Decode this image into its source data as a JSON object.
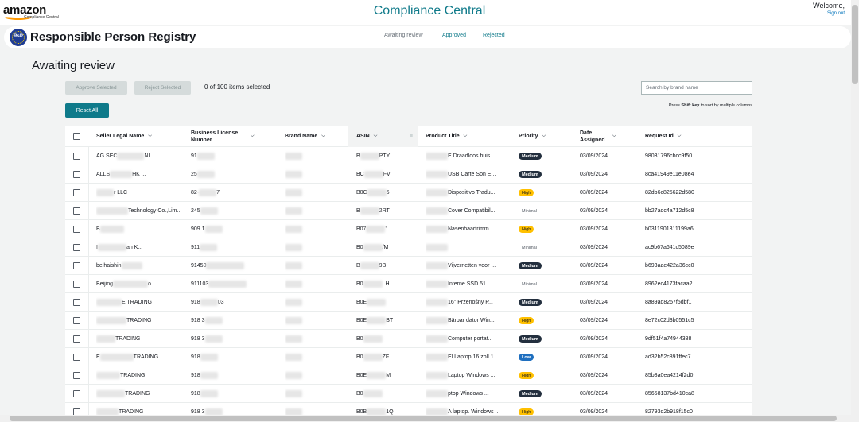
{
  "header": {
    "logo_text": "amazon",
    "logo_sub": "Compliance Central",
    "title": "Compliance Central",
    "welcome": "Welcome,",
    "signout": "Sign out"
  },
  "subheader": {
    "badge_text": "RsP",
    "title": "Responsible Person Registry",
    "nav": [
      "Awaiting review",
      "Approved",
      "Rejected"
    ]
  },
  "page": {
    "heading": "Awaiting review",
    "approve_label": "Approve Selected",
    "reject_label": "Reject Selected",
    "selected_count": "0 of 100 items selected",
    "reset_label": "Reset All",
    "search_placeholder": "Search by brand name",
    "hint_prefix": "Press",
    "hint_key": "Shift key",
    "hint_suffix": "to sort by multiple columns"
  },
  "table": {
    "columns": [
      "Seller Legal Name",
      "Business License Number",
      "Brand Name",
      "ASIN",
      "Product Title",
      "Priority",
      "Date Assigned",
      "Request Id"
    ],
    "rows": [
      {
        "seller": "AG SEC",
        "seller_tail": "NI...",
        "license": "91",
        "brand": "",
        "asin_pre": "B",
        "asin_suf": "PTY",
        "title": "E Draadloos huis...",
        "priority": "Medium",
        "date": "03/09/2024",
        "request": "98031796cbcc9f50"
      },
      {
        "seller": "ALLS",
        "seller_tail": "HK ...",
        "license": "25",
        "brand": "",
        "asin_pre": "BC",
        "asin_suf": "FV",
        "title": "USB Carte Son E...",
        "priority": "Medium",
        "date": "03/09/2024",
        "request": "8ca41949e11e08e4"
      },
      {
        "seller": "",
        "seller_tail": "r LLC",
        "license": "82-",
        "license_tail": "7",
        "brand": "",
        "asin_pre": "B0C",
        "asin_suf": "5",
        "title": "Dispositivo Tradu...",
        "priority": "High",
        "date": "03/09/2024",
        "request": "82db6c825622d580"
      },
      {
        "seller": "",
        "seller_tail": "Technology Co.,Lim...",
        "license": "245",
        "brand": "",
        "asin_pre": "B",
        "asin_suf": "2RT",
        "title": "Cover Compatibil...",
        "priority": "Minimal",
        "date": "03/09/2024",
        "request": "bb27adc4a712d5c8"
      },
      {
        "seller": "B",
        "seller_tail": "",
        "license": "909 1",
        "brand": "",
        "asin_pre": "B07",
        "asin_suf": "'",
        "title": "Nasenhaartrimm...",
        "priority": "High",
        "date": "03/09/2024",
        "request": "b0311901311199a6"
      },
      {
        "seller": "I",
        "seller_tail": "an K...",
        "license": "911",
        "brand": "",
        "asin_pre": "B0",
        "asin_suf": "/M",
        "title": "",
        "priority": "Minimal",
        "date": "03/09/2024",
        "request": "ac9b67a641c5089e"
      },
      {
        "seller": "beihaishin",
        "seller_tail": "",
        "license": "91450",
        "brand": "",
        "asin_pre": "B",
        "asin_suf": "9B",
        "title": "Vijvernetten voor ...",
        "priority": "Medium",
        "date": "03/09/2024",
        "request": "b693aae422a36cc0"
      },
      {
        "seller": "Beijing",
        "seller_tail": "o ...",
        "license": "911103",
        "brand": "",
        "asin_pre": "B0",
        "asin_suf": "LH",
        "title": "Interne SSD 51...",
        "priority": "Minimal",
        "date": "03/09/2024",
        "request": "8962ec4173facaa2"
      },
      {
        "seller": "",
        "seller_tail": "E TRADING",
        "license": "918",
        "license_tail": "03",
        "brand": "",
        "asin_pre": "B0E",
        "asin_suf": "",
        "title": "16\" Przenośny P...",
        "priority": "Medium",
        "date": "03/09/2024",
        "request": "8a89ad8257f5dbf1"
      },
      {
        "seller": "",
        "seller_tail": "TRADING",
        "license": "918 3",
        "brand": "",
        "asin_pre": "B0E",
        "asin_suf": "BT",
        "title": "Bärbar dator Win...",
        "priority": "High",
        "date": "03/09/2024",
        "request": "8e72c02d3b0551c5"
      },
      {
        "seller": "",
        "seller_tail": "TRADING",
        "license": "918 3",
        "brand": "",
        "asin_pre": "B0",
        "asin_suf": "",
        "title": "Computer portat...",
        "priority": "Medium",
        "date": "03/09/2024",
        "request": "9df51f4a74944388"
      },
      {
        "seller": "E",
        "seller_tail": "TRADING",
        "license": "918",
        "brand": "",
        "asin_pre": "B0",
        "asin_suf": "ZF",
        "title": "El Laptop 16 zoll 1...",
        "priority": "Low",
        "date": "03/09/2024",
        "request": "ad32b52c891ffec7"
      },
      {
        "seller": "",
        "seller_tail": "TRADING",
        "license": "918",
        "brand": "",
        "asin_pre": "B0E",
        "asin_suf": "M",
        "title": "Laptop Windows ...",
        "priority": "High",
        "date": "03/09/2024",
        "request": "85b8a0ea4214f2d0"
      },
      {
        "seller": "",
        "seller_tail": "TRADING",
        "license": "918",
        "brand": "",
        "asin_pre": "B0",
        "asin_suf": "",
        "title": "ptop Windows ...",
        "priority": "Medium",
        "date": "03/09/2024",
        "request": "85658137bd410ca8"
      },
      {
        "seller": "",
        "seller_tail": "TRADING",
        "license": "918 3",
        "brand": "",
        "asin_pre": "B0B",
        "asin_suf": "1Q",
        "title": "A laptop. Windows ...",
        "priority": "High",
        "date": "03/09/2024",
        "request": "82793d2b918f15c0"
      }
    ]
  }
}
